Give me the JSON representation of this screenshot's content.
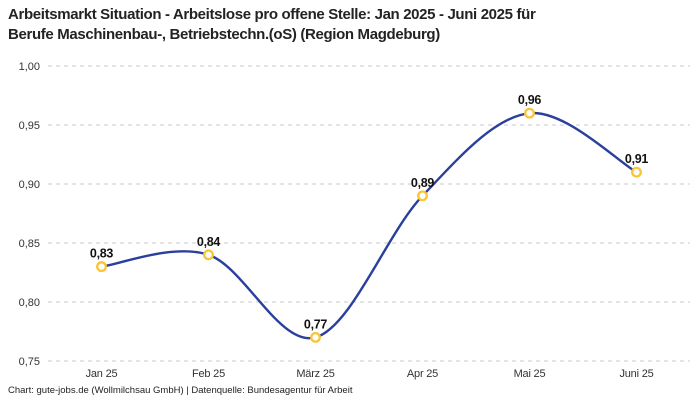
{
  "header": {
    "title_lines": [
      "Arbeitsmarkt Situation - Arbeitslose pro offene Stelle: Jan 2025 - Juni 2025 für",
      "Berufe Maschinenbau-, Betriebstechn.(oS) (Region Magdeburg)"
    ]
  },
  "footer": {
    "text": "Chart: gute-jobs.de (Wollmilchsau GmbH) | Datenquelle: Bundesagentur für Arbeit"
  },
  "chart_data": {
    "type": "line",
    "title": "Arbeitsmarkt Situation - Arbeitslose pro offene Stelle: Jan 2025 - Juni 2025 für Berufe Maschinenbau-, Betriebstechn.(oS) (Region Magdeburg)",
    "categories": [
      "Jan 25",
      "Feb 25",
      "März 25",
      "Apr 25",
      "Mai 25",
      "Juni 25"
    ],
    "values": [
      0.83,
      0.84,
      0.77,
      0.89,
      0.96,
      0.91
    ],
    "value_labels": [
      "0,83",
      "0,84",
      "0,77",
      "0,89",
      "0,96",
      "0,91"
    ],
    "ylim": [
      0.75,
      1.0
    ],
    "ytick_values": [
      0.75,
      0.8,
      0.85,
      0.9,
      0.95,
      1.0
    ],
    "ytick_labels": [
      "0,75",
      "0,80",
      "0,85",
      "0,90",
      "0,95",
      "1,00"
    ],
    "xlabel": "",
    "ylabel": "",
    "grid": "horizontal-dashed",
    "legend": "none",
    "line_style": "smooth-spline",
    "colors": {
      "line": "#2b3f9c",
      "marker_stroke": "#fcc332",
      "marker_fill": "#ffffff",
      "grid": "#c9c9c9",
      "tick_text": "#333333",
      "data_label_text": "#111111",
      "title_text": "#232323",
      "footer_text": "#222222",
      "background": "#ffffff"
    }
  }
}
